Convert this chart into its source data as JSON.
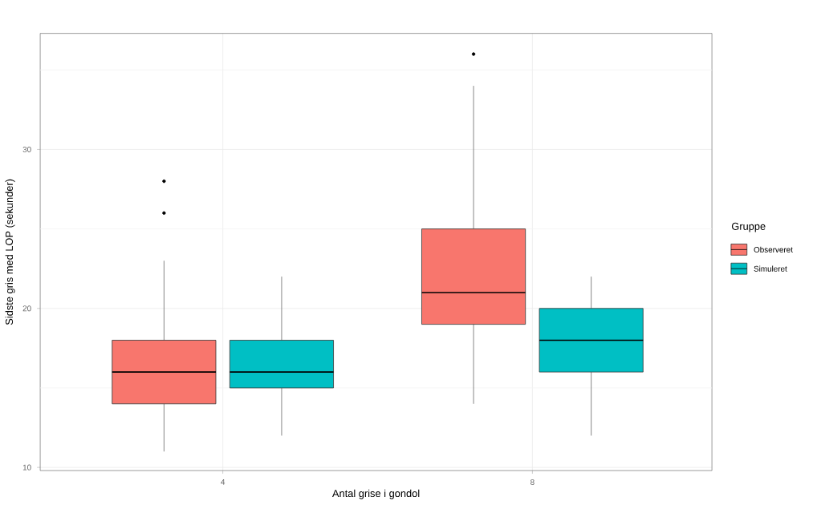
{
  "chart_data": {
    "type": "box",
    "xlabel": "Antal grise i gondol",
    "ylabel": "Sidste gris med LOP (sekunder)",
    "legend_title": "Gruppe",
    "categories": [
      "4",
      "8"
    ],
    "series": [
      {
        "name": "Observeret",
        "color": "#f8766d",
        "boxes": [
          {
            "low": 11,
            "q1": 14,
            "median": 16,
            "q3": 18,
            "high": 23,
            "outliers": [
              28,
              26
            ]
          },
          {
            "low": 14,
            "q1": 19,
            "median": 21,
            "q3": 25,
            "high": 34,
            "outliers": [
              36
            ]
          }
        ]
      },
      {
        "name": "Simuleret",
        "color": "#00bfc4",
        "boxes": [
          {
            "low": 12,
            "q1": 15,
            "median": 16,
            "q3": 18,
            "high": 22
          },
          {
            "low": 12,
            "q1": 16,
            "median": 18,
            "q3": 20,
            "high": 22
          }
        ]
      }
    ],
    "ylim": [
      9.8,
      37.3
    ],
    "yticks": [
      10,
      {
        "value": 15,
        "label": null
      },
      20,
      {
        "value": 25,
        "label": null
      },
      30,
      {
        "value": 35,
        "label": null
      }
    ],
    "grid": true,
    "legend": "right"
  }
}
